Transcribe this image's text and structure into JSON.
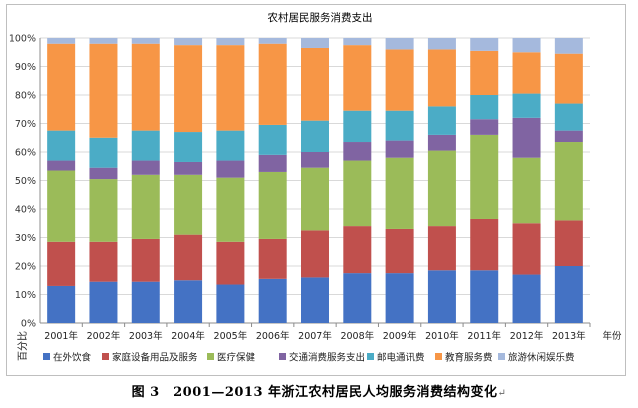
{
  "chart_data": {
    "type": "bar",
    "stacked": "percent",
    "title": "农村居民服务消费支出",
    "ylabel": "百分比",
    "xlabel": "年份",
    "ylim": [
      0,
      100
    ],
    "yticks": [
      "0%",
      "10%",
      "20%",
      "30%",
      "40%",
      "50%",
      "60%",
      "70%",
      "80%",
      "90%",
      "100%"
    ],
    "grid": true,
    "legend_position": "bottom",
    "categories": [
      "2001年",
      "2002年",
      "2003年",
      "2004年",
      "2005年",
      "2006年",
      "2007年",
      "2008年",
      "2009年",
      "2010年",
      "2011年",
      "2012年",
      "2013年"
    ],
    "series": [
      {
        "name": "在外饮食",
        "color": "#4472C4",
        "values": [
          13,
          14.5,
          14.5,
          15,
          13.5,
          15.5,
          16,
          17.5,
          17.5,
          18.5,
          18.5,
          17,
          20
        ]
      },
      {
        "name": "家庭设备用品及服务",
        "color": "#C0504D",
        "values": [
          15.5,
          14,
          15,
          16,
          15,
          14,
          16.5,
          16.5,
          15.5,
          15.5,
          18,
          18,
          16
        ]
      },
      {
        "name": "医疗保健",
        "color": "#9BBB59",
        "values": [
          25,
          22,
          22.5,
          21,
          22.5,
          23.5,
          22,
          23,
          25,
          26.5,
          29.5,
          23,
          27.5
        ]
      },
      {
        "name": "交通消费服务支出",
        "color": "#8064A2",
        "values": [
          3.5,
          4,
          5,
          4.5,
          6,
          6,
          5.5,
          6.5,
          6,
          5.5,
          5.5,
          14,
          4
        ]
      },
      {
        "name": "邮电通讯费",
        "color": "#4BACC6",
        "values": [
          10.5,
          10.5,
          10.5,
          10.5,
          10.5,
          10.5,
          11,
          11,
          10.5,
          10,
          8.5,
          8.5,
          9.5
        ]
      },
      {
        "name": "教育服务费",
        "color": "#F79646",
        "values": [
          30.5,
          33,
          30.5,
          30.5,
          30,
          28.5,
          25.5,
          23,
          21.5,
          20,
          15.5,
          14.5,
          17.5
        ]
      },
      {
        "name": "旅游休闲娱乐费",
        "color": "#A5B9DD",
        "values": [
          2,
          2,
          2,
          2.5,
          2.5,
          2,
          3.5,
          2.5,
          4,
          4,
          4.5,
          5,
          5.5
        ]
      }
    ]
  },
  "caption": "图 3　2001—2013 年浙江农村居民人均服务消费结构变化",
  "caption_mark": "↵"
}
